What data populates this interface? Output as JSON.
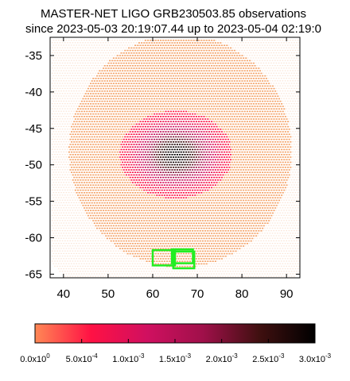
{
  "chart_data": {
    "type": "heatmap",
    "title_line1": "MASTER-NET LIGO GRB230503.85 observations",
    "title_line2": "since 2023-05-03 20:19:07.44 up to 2023-05-04 02:19:0",
    "xlabel": "",
    "ylabel": "",
    "xlim": [
      37,
      93
    ],
    "ylim": [
      -65.5,
      -32.5
    ],
    "x_ticks": [
      40,
      50,
      60,
      70,
      80,
      90
    ],
    "x_tick_labels": [
      "40",
      "50",
      "60",
      "70",
      "80",
      "90"
    ],
    "y_ticks": [
      -35,
      -40,
      -45,
      -50,
      -55,
      -60,
      -65
    ],
    "y_tick_labels": [
      "-35",
      "-40",
      "-45",
      "-50",
      "-55",
      "-60",
      "-65"
    ],
    "grid": false,
    "map": {
      "center": [
        66,
        -48
      ],
      "radius_x": 25,
      "radius_y": 16,
      "low_color": "#f4a46a",
      "outside_color": "#fbe4d6",
      "peak_center": [
        65,
        -48.5
      ],
      "peak_value": 0.003
    },
    "fields": [
      {
        "x": [
          60,
          65
        ],
        "y": [
          -61.7,
          -63.8
        ],
        "color": "#22ee22"
      },
      {
        "x": [
          64.3,
          69
        ],
        "y": [
          -61.6,
          -63.5
        ],
        "color": "#22ee22"
      },
      {
        "x": [
          64.6,
          69.3
        ],
        "y": [
          -61.9,
          -64.2
        ],
        "color": "#22ee22"
      }
    ],
    "colorbar": {
      "min": 0,
      "max": 0.003,
      "stops": [
        "#ff8855",
        "#ff1144",
        "#d01060",
        "#a0104a",
        "#401010",
        "#000000"
      ],
      "tick_values": [
        0,
        0.0005,
        0.001,
        0.0015,
        0.002,
        0.0025,
        0.003
      ],
      "tick_labels": [
        {
          "mantissa": "0.0x10",
          "exp": "0"
        },
        {
          "mantissa": "5.0x10",
          "exp": "-4"
        },
        {
          "mantissa": "1.0x10",
          "exp": "-3"
        },
        {
          "mantissa": "1.5x10",
          "exp": "-3"
        },
        {
          "mantissa": "2.0x10",
          "exp": "-3"
        },
        {
          "mantissa": "2.5x10",
          "exp": "-3"
        },
        {
          "mantissa": "3.0x10",
          "exp": "-3"
        }
      ]
    }
  }
}
